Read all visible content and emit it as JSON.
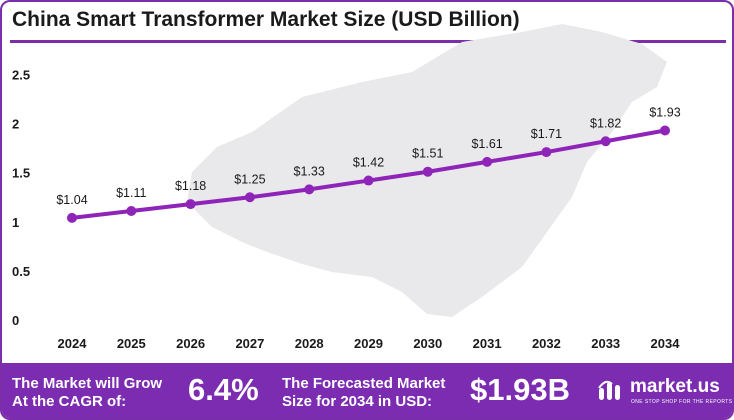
{
  "title": "China Smart Transformer Market Size (USD Billion)",
  "colors": {
    "accent": "#7b2cb0",
    "line": "#8e24b8",
    "map": "#e9e9ec"
  },
  "chart_data": {
    "type": "line",
    "title": "China Smart Transformer Market Size (USD Billion)",
    "xlabel": "",
    "ylabel": "",
    "categories": [
      "2024",
      "2025",
      "2026",
      "2027",
      "2028",
      "2029",
      "2030",
      "2031",
      "2032",
      "2033",
      "2034"
    ],
    "values": [
      1.04,
      1.11,
      1.18,
      1.25,
      1.33,
      1.42,
      1.51,
      1.61,
      1.71,
      1.82,
      1.93
    ],
    "data_labels": [
      "$1.04",
      "$1.11",
      "$1.18",
      "$1.25",
      "$1.33",
      "$1.42",
      "$1.51",
      "$1.61",
      "$1.71",
      "$1.82",
      "$1.93"
    ],
    "ylim": [
      0,
      2.5
    ],
    "yticks": [
      "0",
      "0.5",
      "1",
      "1.5",
      "2",
      "2.5"
    ],
    "grid": false,
    "legend": "none"
  },
  "footer": {
    "cagr_label": "The Market will Grow\nAt the CAGR of:",
    "cagr_value": "6.4%",
    "forecast_label": "The Forecasted Market\nSize for 2034 in USD:",
    "forecast_value": "$1.93B",
    "logo_name": "market.us",
    "logo_tagline": "ONE STOP SHOP FOR THE REPORTS",
    "logo_icon": "market-us-logo-icon"
  }
}
